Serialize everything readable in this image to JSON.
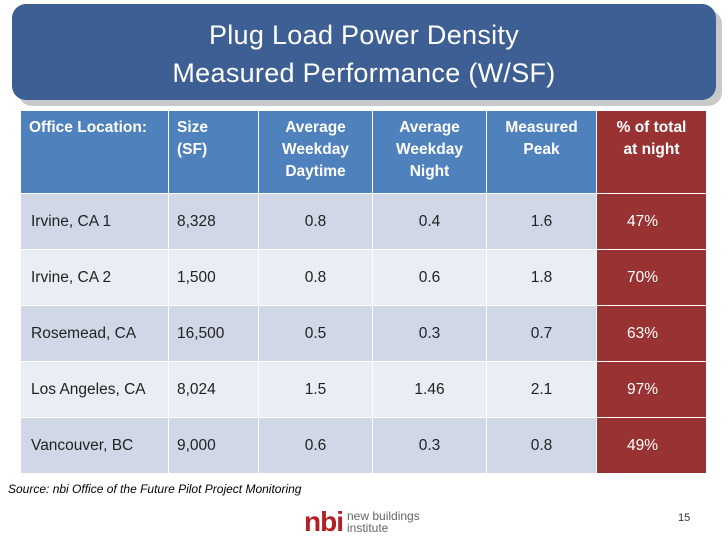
{
  "title": {
    "line1": "Plug Load Power Density",
    "line2": "Measured Performance (W/SF)"
  },
  "table": {
    "headers": [
      "Office Location:",
      "Size (SF)",
      "Average Weekday Daytime",
      "Average Weekday Night",
      "Measured Peak",
      "% of total at night"
    ],
    "header_lines": [
      [
        "Office Location:"
      ],
      [
        "Size",
        "(SF)"
      ],
      [
        "Average",
        "Weekday",
        "Daytime"
      ],
      [
        "Average",
        "Weekday",
        "Night"
      ],
      [
        "Measured",
        "Peak"
      ],
      [
        "% of total",
        "at night"
      ]
    ],
    "rows": [
      {
        "location": "Irvine, CA 1",
        "size": "8,328",
        "daytime": "0.8",
        "night": "0.4",
        "peak": "1.6",
        "pct_night": "47%"
      },
      {
        "location": "Irvine, CA 2",
        "size": "1,500",
        "daytime": "0.8",
        "night": "0.6",
        "peak": "1.8",
        "pct_night": "70%"
      },
      {
        "location": "Rosemead, CA",
        "size": "16,500",
        "daytime": "0.5",
        "night": "0.3",
        "peak": "0.7",
        "pct_night": "63%"
      },
      {
        "location": "Los Angeles, CA",
        "size": "8,024",
        "daytime": "1.5",
        "night": "1.46",
        "peak": "2.1",
        "pct_night": "97%"
      },
      {
        "location": "Vancouver, BC",
        "size": "9,000",
        "daytime": "0.6",
        "night": "0.3",
        "peak": "0.8",
        "pct_night": "49%"
      }
    ]
  },
  "source": "Source: nbi Office of the Future Pilot Project Monitoring",
  "logo": {
    "mark": "nbi",
    "line1": "new buildings",
    "line2": "institute"
  },
  "page_number": "15",
  "colors": {
    "title_bg": "#3d5f93",
    "header_bg": "#4f81bd",
    "night_col": "#993333",
    "row_a": "#d0d8e8",
    "row_b": "#e9edf4",
    "logo_red": "#b31f24"
  }
}
